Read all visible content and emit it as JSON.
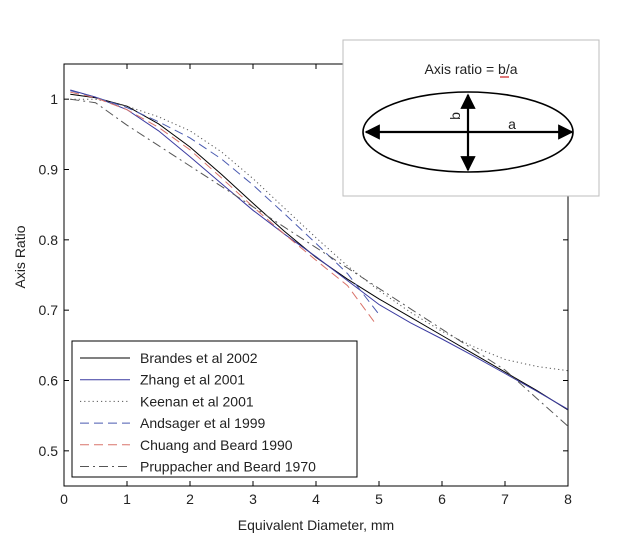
{
  "chart_data": {
    "type": "line",
    "xlabel": "Equivalent Diameter, mm",
    "ylabel": "Axis Ratio",
    "xlim": [
      0,
      8
    ],
    "ylim": [
      0.45,
      1.05
    ],
    "xticks": [
      0,
      1,
      2,
      3,
      4,
      5,
      6,
      7,
      8
    ],
    "xtick_labels": [
      "0",
      "1",
      "2",
      "3",
      "4",
      "5",
      "6",
      "7",
      "8"
    ],
    "yticks": [
      0.5,
      0.6,
      0.7,
      0.8,
      0.9,
      1.0
    ],
    "ytick_labels": [
      "0.5",
      "0.6",
      "0.7",
      "0.8",
      "0.9",
      "1"
    ],
    "grid": false,
    "legend_position": "bottom-left",
    "series": [
      {
        "name": "Brandes et al 2002",
        "color": "#000000",
        "dash": "solid",
        "x": [
          0.1,
          0.5,
          1,
          1.5,
          2,
          2.5,
          3,
          3.5,
          4,
          4.5,
          5,
          5.5,
          6,
          6.5,
          7,
          7.5,
          8
        ],
        "y": [
          1.007,
          1.002,
          0.99,
          0.965,
          0.932,
          0.893,
          0.852,
          0.812,
          0.775,
          0.744,
          0.716,
          0.69,
          0.664,
          0.638,
          0.612,
          0.586,
          0.558
        ]
      },
      {
        "name": "Zhang et al 2001",
        "color": "#3a3aa0",
        "dash": "solid",
        "x": [
          0.1,
          0.5,
          1,
          1.5,
          2,
          2.5,
          3,
          3.5,
          4,
          4.5,
          5,
          5.5,
          6,
          6.5,
          7,
          7.5,
          8
        ],
        "y": [
          1.013,
          1.003,
          0.985,
          0.955,
          0.918,
          0.88,
          0.842,
          0.808,
          0.776,
          0.742,
          0.708,
          0.682,
          0.659,
          0.635,
          0.61,
          0.585,
          0.559
        ]
      },
      {
        "name": "Keenan et al 2001",
        "color": "#555555",
        "dash": "dotted",
        "x": [
          0.1,
          0.5,
          1,
          1.5,
          2,
          2.5,
          3,
          3.5,
          4,
          4.5,
          5,
          5.5,
          6,
          6.5,
          7,
          7.5,
          8
        ],
        "y": [
          1.0,
          1.0,
          0.99,
          0.975,
          0.955,
          0.925,
          0.887,
          0.845,
          0.803,
          0.763,
          0.728,
          0.697,
          0.67,
          0.648,
          0.63,
          0.62,
          0.614
        ]
      },
      {
        "name": "Andsager et al 1999",
        "color": "#4a5ab0",
        "dash": "dashed",
        "x": [
          0.1,
          0.5,
          1,
          1.5,
          2,
          2.5,
          3,
          3.5,
          4,
          4.5,
          5
        ],
        "y": [
          1.012,
          1.003,
          0.988,
          0.968,
          0.945,
          0.915,
          0.878,
          0.837,
          0.795,
          0.752,
          0.694
        ]
      },
      {
        "name": "Chuang and Beard 1990",
        "color": "#d9736a",
        "dash": "dashed",
        "x": [
          0.1,
          0.5,
          1,
          1.5,
          2,
          2.5,
          3,
          3.5,
          4,
          4.5,
          4.95
        ],
        "y": [
          1.01,
          1.002,
          0.985,
          0.96,
          0.928,
          0.888,
          0.847,
          0.808,
          0.771,
          0.735,
          0.68
        ]
      },
      {
        "name": "Pruppacher and Beard 1970",
        "color": "#555555",
        "dash": "dashdot",
        "x": [
          0.1,
          0.5,
          1,
          1.5,
          2,
          2.5,
          3,
          3.5,
          4,
          4.5,
          5,
          5.5,
          6,
          6.5,
          7,
          7.5,
          8
        ],
        "y": [
          1.0,
          0.995,
          0.963,
          0.934,
          0.905,
          0.876,
          0.847,
          0.818,
          0.789,
          0.76,
          0.731,
          0.702,
          0.673,
          0.644,
          0.615,
          0.575,
          0.535
        ]
      }
    ],
    "inset": {
      "title": "Axis ratio = b/a",
      "label_b": "b",
      "label_a": "a"
    }
  }
}
